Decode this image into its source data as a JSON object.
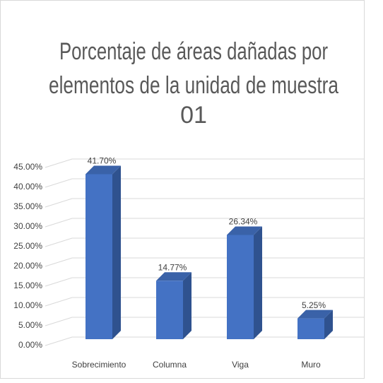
{
  "chart_data": {
    "type": "bar3d",
    "title": [
      "Porcentaje de áreas dañadas por",
      "elementos de la unidad de muestra",
      "01"
    ],
    "categories": [
      "Sobrecimiento",
      "Columna",
      "Viga",
      "Muro"
    ],
    "values": [
      41.7,
      14.77,
      26.34,
      5.25
    ],
    "value_labels": [
      "41.70%",
      "14.77%",
      "26.34%",
      "5.25%"
    ],
    "color": "#4472c4",
    "ylim": [
      0,
      45
    ],
    "yticks": [
      {
        "value": 0,
        "label": "0.00%"
      },
      {
        "value": 5,
        "label": "5.00%"
      },
      {
        "value": 10,
        "label": "10.00%"
      },
      {
        "value": 15,
        "label": "15.00%"
      },
      {
        "value": 20,
        "label": "20.00%"
      },
      {
        "value": 25,
        "label": "25.00%"
      },
      {
        "value": 30,
        "label": "30.00%"
      },
      {
        "value": 35,
        "label": "35.00%"
      },
      {
        "value": 40,
        "label": "40.00%"
      },
      {
        "value": 45,
        "label": "45.00%"
      }
    ],
    "grid": true
  }
}
